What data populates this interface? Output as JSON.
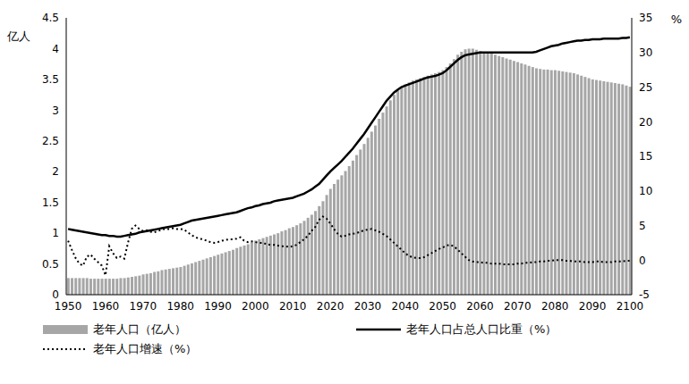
{
  "chart_data": {
    "type": "bar",
    "categories": [
      "1950",
      null,
      null,
      null,
      null,
      null,
      null,
      null,
      null,
      null,
      "1960",
      null,
      null,
      null,
      null,
      null,
      null,
      null,
      null,
      null,
      "1970",
      null,
      null,
      null,
      null,
      null,
      null,
      null,
      null,
      null,
      "1980",
      null,
      null,
      null,
      null,
      null,
      null,
      null,
      null,
      null,
      "1990",
      null,
      null,
      null,
      null,
      null,
      null,
      null,
      null,
      null,
      "2000",
      null,
      null,
      null,
      null,
      null,
      null,
      null,
      null,
      null,
      "2010",
      null,
      null,
      null,
      null,
      null,
      null,
      null,
      null,
      null,
      "2020",
      null,
      null,
      null,
      null,
      null,
      null,
      null,
      null,
      null,
      "2030",
      null,
      null,
      null,
      null,
      null,
      null,
      null,
      null,
      null,
      "2040",
      null,
      null,
      null,
      null,
      null,
      null,
      null,
      null,
      null,
      "2050",
      null,
      null,
      null,
      null,
      null,
      null,
      null,
      null,
      null,
      "2060",
      null,
      null,
      null,
      null,
      null,
      null,
      null,
      null,
      null,
      "2070",
      null,
      null,
      null,
      null,
      null,
      null,
      null,
      null,
      null,
      "2080",
      null,
      null,
      null,
      null,
      null,
      null,
      null,
      null,
      null,
      "2090",
      null,
      null,
      null,
      null,
      null,
      null,
      null,
      null,
      null,
      "2100"
    ],
    "y_label": "亿人",
    "y2_label": "%",
    "ylim": [
      0,
      4.5
    ],
    "yticks": [
      0,
      0.5,
      1,
      1.5,
      2,
      2.5,
      3,
      3.5,
      4,
      4.5
    ],
    "y2lim": [
      -5,
      35
    ],
    "y2ticks": [
      -5,
      0,
      5,
      10,
      15,
      20,
      25,
      30,
      35
    ],
    "grid": false,
    "legend": "bottom",
    "series": [
      {
        "name": "老年人口（亿人）",
        "type": "bar",
        "axis": "y",
        "color": "#a6a6a6",
        "values": [
          0.27,
          0.27,
          0.27,
          0.27,
          0.27,
          0.27,
          0.26,
          0.26,
          0.26,
          0.26,
          0.26,
          0.26,
          0.26,
          0.26,
          0.27,
          0.27,
          0.28,
          0.29,
          0.3,
          0.31,
          0.33,
          0.34,
          0.35,
          0.37,
          0.38,
          0.4,
          0.41,
          0.42,
          0.43,
          0.44,
          0.45,
          0.47,
          0.49,
          0.51,
          0.53,
          0.55,
          0.57,
          0.59,
          0.61,
          0.63,
          0.65,
          0.67,
          0.69,
          0.71,
          0.73,
          0.76,
          0.78,
          0.8,
          0.82,
          0.85,
          0.88,
          0.9,
          0.92,
          0.94,
          0.96,
          0.98,
          1.0,
          1.03,
          1.05,
          1.08,
          1.1,
          1.13,
          1.16,
          1.2,
          1.25,
          1.3,
          1.36,
          1.44,
          1.52,
          1.62,
          1.72,
          1.8,
          1.87,
          1.94,
          2.01,
          2.09,
          2.18,
          2.27,
          2.36,
          2.45,
          2.55,
          2.65,
          2.75,
          2.86,
          2.96,
          3.06,
          3.16,
          3.25,
          3.32,
          3.38,
          3.42,
          3.45,
          3.48,
          3.5,
          3.52,
          3.54,
          3.56,
          3.58,
          3.6,
          3.62,
          3.65,
          3.7,
          3.76,
          3.83,
          3.9,
          3.95,
          3.99,
          4.0,
          4.0,
          3.98,
          3.96,
          3.95,
          3.94,
          3.92,
          3.9,
          3.88,
          3.86,
          3.84,
          3.82,
          3.8,
          3.78,
          3.76,
          3.74,
          3.72,
          3.7,
          3.68,
          3.67,
          3.66,
          3.66,
          3.65,
          3.65,
          3.64,
          3.63,
          3.62,
          3.61,
          3.6,
          3.58,
          3.56,
          3.54,
          3.52,
          3.5,
          3.49,
          3.48,
          3.47,
          3.46,
          3.45,
          3.44,
          3.43,
          3.42,
          3.4,
          3.38
        ]
      },
      {
        "name": "老年人口占总人口比重（%）",
        "type": "line",
        "axis": "y2",
        "color": "#000000",
        "line_style": "solid",
        "values": [
          4.5,
          4.4,
          4.3,
          4.2,
          4.1,
          4.0,
          3.9,
          3.8,
          3.7,
          3.6,
          3.6,
          3.5,
          3.5,
          3.4,
          3.4,
          3.5,
          3.6,
          3.7,
          3.8,
          4.0,
          4.1,
          4.2,
          4.3,
          4.4,
          4.5,
          4.6,
          4.7,
          4.8,
          4.9,
          5.0,
          5.1,
          5.3,
          5.5,
          5.7,
          5.8,
          5.9,
          6.0,
          6.1,
          6.2,
          6.3,
          6.4,
          6.5,
          6.6,
          6.7,
          6.8,
          6.9,
          7.1,
          7.3,
          7.5,
          7.6,
          7.8,
          7.9,
          8.1,
          8.2,
          8.3,
          8.5,
          8.6,
          8.7,
          8.8,
          8.9,
          9.0,
          9.2,
          9.4,
          9.6,
          9.9,
          10.2,
          10.6,
          11.0,
          11.6,
          12.2,
          12.8,
          13.3,
          13.8,
          14.3,
          14.9,
          15.5,
          16.1,
          16.8,
          17.5,
          18.2,
          19.0,
          19.8,
          20.6,
          21.4,
          22.2,
          23.0,
          23.6,
          24.2,
          24.6,
          25.0,
          25.2,
          25.4,
          25.6,
          25.8,
          26.0,
          26.2,
          26.4,
          26.5,
          26.6,
          26.8,
          27.0,
          27.4,
          27.9,
          28.4,
          28.9,
          29.3,
          29.6,
          29.7,
          29.8,
          29.9,
          30.0,
          30.0,
          30.0,
          30.0,
          30.0,
          30.0,
          30.0,
          30.0,
          30.0,
          30.0,
          30.0,
          30.0,
          30.0,
          30.0,
          30.0,
          30.1,
          30.3,
          30.5,
          30.7,
          30.9,
          31.0,
          31.1,
          31.3,
          31.4,
          31.5,
          31.6,
          31.7,
          31.7,
          31.8,
          31.8,
          31.9,
          31.9,
          31.9,
          32.0,
          32.0,
          32.0,
          32.0,
          32.0,
          32.1,
          32.1,
          32.2
        ]
      },
      {
        "name": "老年人口增速（%）",
        "type": "line",
        "axis": "y2",
        "color": "#000000",
        "line_style": "dotted",
        "values": [
          2.8,
          1.5,
          0.3,
          -0.5,
          -0.8,
          0.5,
          0.8,
          0.2,
          -0.3,
          -0.8,
          -2.2,
          2.0,
          1.0,
          0.3,
          0.5,
          0.2,
          2.5,
          4.5,
          5.0,
          4.5,
          4.2,
          4.3,
          4.1,
          4.0,
          4.2,
          4.4,
          4.5,
          4.5,
          4.6,
          4.5,
          4.5,
          4.4,
          4.0,
          3.6,
          3.3,
          3.1,
          3.0,
          2.8,
          2.6,
          2.5,
          2.6,
          2.8,
          2.9,
          3.0,
          3.0,
          3.1,
          3.3,
          2.8,
          2.6,
          2.7,
          2.6,
          2.5,
          2.5,
          2.3,
          2.2,
          2.2,
          2.1,
          2.0,
          2.0,
          1.9,
          2.0,
          2.2,
          2.6,
          3.0,
          3.5,
          4.2,
          4.8,
          5.8,
          6.3,
          6.0,
          5.3,
          4.5,
          3.8,
          3.4,
          3.5,
          3.7,
          3.8,
          3.9,
          4.1,
          4.3,
          4.4,
          4.5,
          4.3,
          4.1,
          3.8,
          3.5,
          3.0,
          2.5,
          2.0,
          1.5,
          1.0,
          0.6,
          0.4,
          0.3,
          0.3,
          0.4,
          0.7,
          1.0,
          1.3,
          1.6,
          1.8,
          2.1,
          2.2,
          2.0,
          1.5,
          1.0,
          0.5,
          0.0,
          -0.2,
          -0.3,
          -0.3,
          -0.4,
          -0.4,
          -0.5,
          -0.5,
          -0.5,
          -0.6,
          -0.6,
          -0.6,
          -0.6,
          -0.5,
          -0.5,
          -0.4,
          -0.4,
          -0.3,
          -0.3,
          -0.2,
          -0.2,
          -0.1,
          -0.1,
          0.0,
          0.0,
          0.0,
          -0.1,
          -0.1,
          -0.2,
          -0.2,
          -0.2,
          -0.3,
          -0.3,
          -0.3,
          -0.2,
          -0.2,
          -0.3,
          -0.3,
          -0.3,
          -0.2,
          -0.2,
          -0.2,
          -0.1,
          -0.1
        ]
      }
    ]
  }
}
